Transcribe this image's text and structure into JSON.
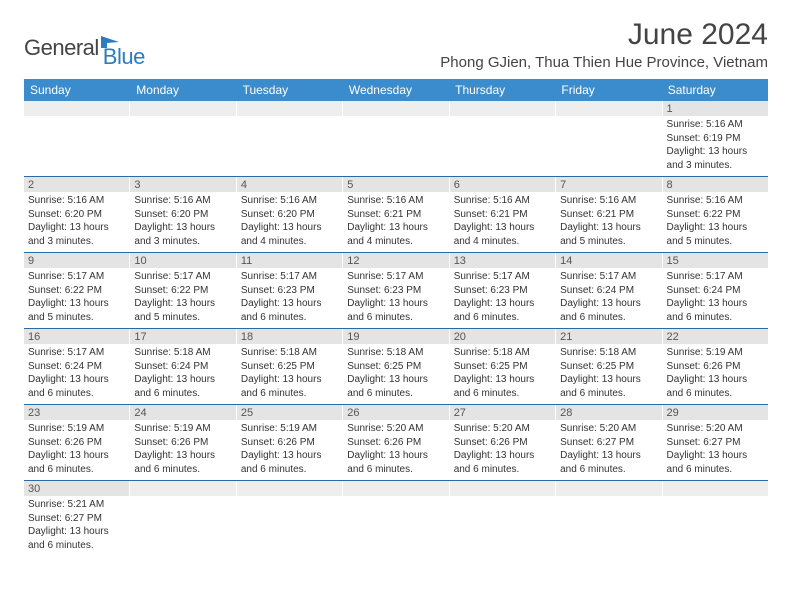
{
  "brand": {
    "part1": "General",
    "part2": "Blue"
  },
  "title": "June 2024",
  "location": "Phong GJien, Thua Thien Hue Province, Vietnam",
  "colors": {
    "header_bg": "#3a8ccc",
    "header_text": "#ffffff",
    "row_border": "#2b6aa8",
    "daynum_bg": "#e4e4e4",
    "body_text": "#333333",
    "brand_blue": "#2b7cc0"
  },
  "day_headers": [
    "Sunday",
    "Monday",
    "Tuesday",
    "Wednesday",
    "Thursday",
    "Friday",
    "Saturday"
  ],
  "weeks": [
    [
      {
        "empty": true
      },
      {
        "empty": true
      },
      {
        "empty": true
      },
      {
        "empty": true
      },
      {
        "empty": true
      },
      {
        "empty": true
      },
      {
        "num": "1",
        "sunrise": "Sunrise: 5:16 AM",
        "sunset": "Sunset: 6:19 PM",
        "daylight1": "Daylight: 13 hours",
        "daylight2": "and 3 minutes."
      }
    ],
    [
      {
        "num": "2",
        "sunrise": "Sunrise: 5:16 AM",
        "sunset": "Sunset: 6:20 PM",
        "daylight1": "Daylight: 13 hours",
        "daylight2": "and 3 minutes."
      },
      {
        "num": "3",
        "sunrise": "Sunrise: 5:16 AM",
        "sunset": "Sunset: 6:20 PM",
        "daylight1": "Daylight: 13 hours",
        "daylight2": "and 3 minutes."
      },
      {
        "num": "4",
        "sunrise": "Sunrise: 5:16 AM",
        "sunset": "Sunset: 6:20 PM",
        "daylight1": "Daylight: 13 hours",
        "daylight2": "and 4 minutes."
      },
      {
        "num": "5",
        "sunrise": "Sunrise: 5:16 AM",
        "sunset": "Sunset: 6:21 PM",
        "daylight1": "Daylight: 13 hours",
        "daylight2": "and 4 minutes."
      },
      {
        "num": "6",
        "sunrise": "Sunrise: 5:16 AM",
        "sunset": "Sunset: 6:21 PM",
        "daylight1": "Daylight: 13 hours",
        "daylight2": "and 4 minutes."
      },
      {
        "num": "7",
        "sunrise": "Sunrise: 5:16 AM",
        "sunset": "Sunset: 6:21 PM",
        "daylight1": "Daylight: 13 hours",
        "daylight2": "and 5 minutes."
      },
      {
        "num": "8",
        "sunrise": "Sunrise: 5:16 AM",
        "sunset": "Sunset: 6:22 PM",
        "daylight1": "Daylight: 13 hours",
        "daylight2": "and 5 minutes."
      }
    ],
    [
      {
        "num": "9",
        "sunrise": "Sunrise: 5:17 AM",
        "sunset": "Sunset: 6:22 PM",
        "daylight1": "Daylight: 13 hours",
        "daylight2": "and 5 minutes."
      },
      {
        "num": "10",
        "sunrise": "Sunrise: 5:17 AM",
        "sunset": "Sunset: 6:22 PM",
        "daylight1": "Daylight: 13 hours",
        "daylight2": "and 5 minutes."
      },
      {
        "num": "11",
        "sunrise": "Sunrise: 5:17 AM",
        "sunset": "Sunset: 6:23 PM",
        "daylight1": "Daylight: 13 hours",
        "daylight2": "and 6 minutes."
      },
      {
        "num": "12",
        "sunrise": "Sunrise: 5:17 AM",
        "sunset": "Sunset: 6:23 PM",
        "daylight1": "Daylight: 13 hours",
        "daylight2": "and 6 minutes."
      },
      {
        "num": "13",
        "sunrise": "Sunrise: 5:17 AM",
        "sunset": "Sunset: 6:23 PM",
        "daylight1": "Daylight: 13 hours",
        "daylight2": "and 6 minutes."
      },
      {
        "num": "14",
        "sunrise": "Sunrise: 5:17 AM",
        "sunset": "Sunset: 6:24 PM",
        "daylight1": "Daylight: 13 hours",
        "daylight2": "and 6 minutes."
      },
      {
        "num": "15",
        "sunrise": "Sunrise: 5:17 AM",
        "sunset": "Sunset: 6:24 PM",
        "daylight1": "Daylight: 13 hours",
        "daylight2": "and 6 minutes."
      }
    ],
    [
      {
        "num": "16",
        "sunrise": "Sunrise: 5:17 AM",
        "sunset": "Sunset: 6:24 PM",
        "daylight1": "Daylight: 13 hours",
        "daylight2": "and 6 minutes."
      },
      {
        "num": "17",
        "sunrise": "Sunrise: 5:18 AM",
        "sunset": "Sunset: 6:24 PM",
        "daylight1": "Daylight: 13 hours",
        "daylight2": "and 6 minutes."
      },
      {
        "num": "18",
        "sunrise": "Sunrise: 5:18 AM",
        "sunset": "Sunset: 6:25 PM",
        "daylight1": "Daylight: 13 hours",
        "daylight2": "and 6 minutes."
      },
      {
        "num": "19",
        "sunrise": "Sunrise: 5:18 AM",
        "sunset": "Sunset: 6:25 PM",
        "daylight1": "Daylight: 13 hours",
        "daylight2": "and 6 minutes."
      },
      {
        "num": "20",
        "sunrise": "Sunrise: 5:18 AM",
        "sunset": "Sunset: 6:25 PM",
        "daylight1": "Daylight: 13 hours",
        "daylight2": "and 6 minutes."
      },
      {
        "num": "21",
        "sunrise": "Sunrise: 5:18 AM",
        "sunset": "Sunset: 6:25 PM",
        "daylight1": "Daylight: 13 hours",
        "daylight2": "and 6 minutes."
      },
      {
        "num": "22",
        "sunrise": "Sunrise: 5:19 AM",
        "sunset": "Sunset: 6:26 PM",
        "daylight1": "Daylight: 13 hours",
        "daylight2": "and 6 minutes."
      }
    ],
    [
      {
        "num": "23",
        "sunrise": "Sunrise: 5:19 AM",
        "sunset": "Sunset: 6:26 PM",
        "daylight1": "Daylight: 13 hours",
        "daylight2": "and 6 minutes."
      },
      {
        "num": "24",
        "sunrise": "Sunrise: 5:19 AM",
        "sunset": "Sunset: 6:26 PM",
        "daylight1": "Daylight: 13 hours",
        "daylight2": "and 6 minutes."
      },
      {
        "num": "25",
        "sunrise": "Sunrise: 5:19 AM",
        "sunset": "Sunset: 6:26 PM",
        "daylight1": "Daylight: 13 hours",
        "daylight2": "and 6 minutes."
      },
      {
        "num": "26",
        "sunrise": "Sunrise: 5:20 AM",
        "sunset": "Sunset: 6:26 PM",
        "daylight1": "Daylight: 13 hours",
        "daylight2": "and 6 minutes."
      },
      {
        "num": "27",
        "sunrise": "Sunrise: 5:20 AM",
        "sunset": "Sunset: 6:26 PM",
        "daylight1": "Daylight: 13 hours",
        "daylight2": "and 6 minutes."
      },
      {
        "num": "28",
        "sunrise": "Sunrise: 5:20 AM",
        "sunset": "Sunset: 6:27 PM",
        "daylight1": "Daylight: 13 hours",
        "daylight2": "and 6 minutes."
      },
      {
        "num": "29",
        "sunrise": "Sunrise: 5:20 AM",
        "sunset": "Sunset: 6:27 PM",
        "daylight1": "Daylight: 13 hours",
        "daylight2": "and 6 minutes."
      }
    ],
    [
      {
        "num": "30",
        "sunrise": "Sunrise: 5:21 AM",
        "sunset": "Sunset: 6:27 PM",
        "daylight1": "Daylight: 13 hours",
        "daylight2": "and 6 minutes."
      },
      {
        "empty": true
      },
      {
        "empty": true
      },
      {
        "empty": true
      },
      {
        "empty": true
      },
      {
        "empty": true
      },
      {
        "empty": true
      }
    ]
  ]
}
